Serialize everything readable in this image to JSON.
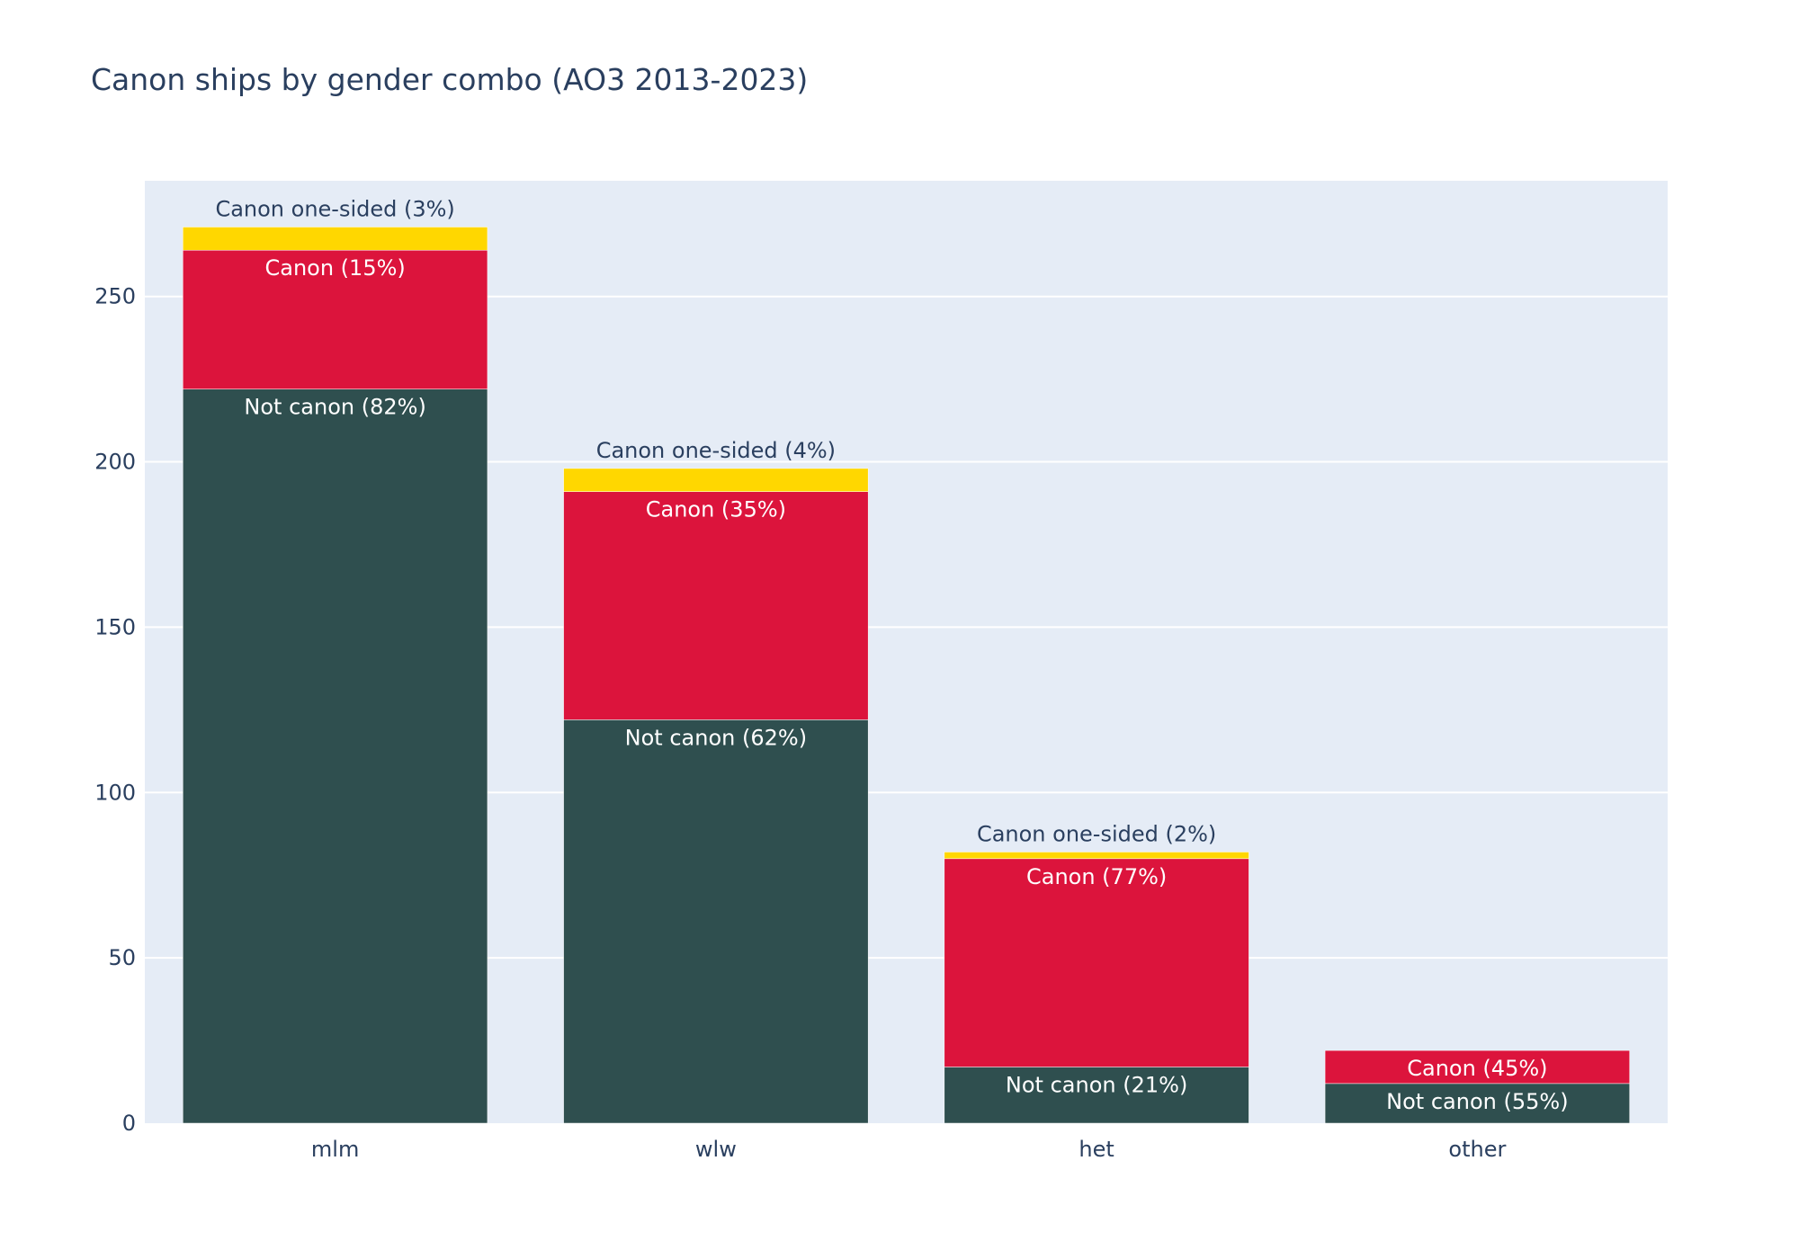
{
  "chart_data": {
    "type": "bar",
    "barmode": "stack",
    "title": "Canon ships by gender combo (AO3 2013-2023)",
    "xlabel": "",
    "ylabel": "",
    "categories": [
      "mlm",
      "wlw",
      "het",
      "other"
    ],
    "ylim": [
      0,
      285
    ],
    "yticks": [
      0,
      50,
      100,
      150,
      200,
      250
    ],
    "grid": true,
    "legend": "none",
    "series": [
      {
        "color": "#2f4f4f",
        "label_color": "#ffffff",
        "values": [
          222,
          122,
          17,
          12
        ],
        "labels": [
          "Not canon (82%)",
          "Not canon (62%)",
          "Not canon (21%)",
          "Not canon (55%)"
        ]
      },
      {
        "color": "#dc143c",
        "label_color": "#ffffff",
        "values": [
          42,
          69,
          63,
          10
        ],
        "labels": [
          "Canon (15%)",
          "Canon (35%)",
          "Canon (77%)",
          "Canon (45%)"
        ]
      },
      {
        "color": "#ffd700",
        "label_color": "#2a3f5f",
        "values": [
          7,
          7,
          2,
          0
        ],
        "labels": [
          "Canon one-sided (3%)",
          "Canon one-sided (4%)",
          "Canon one-sided (2%)",
          ""
        ]
      }
    ]
  }
}
